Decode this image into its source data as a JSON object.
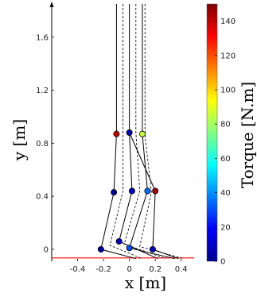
{
  "chart_data": {
    "type": "line",
    "title": "",
    "xlabel": "x [m]",
    "ylabel": "y [m]",
    "xlim": [
      -0.6,
      0.5
    ],
    "ylim": [
      -0.09,
      1.85
    ],
    "x_ticks": [
      -0.4,
      -0.2,
      0,
      0.2,
      0.4
    ],
    "x_tick_labels": [
      "-0.4",
      "-0.2",
      "0",
      "0.2",
      "0.4"
    ],
    "y_ticks": [
      0,
      0.4,
      0.8,
      1.2,
      1.6
    ],
    "y_tick_labels": [
      "0",
      "0.4",
      "0.8",
      "1.2",
      "1.6"
    ],
    "grid": false,
    "ground_y": -0.065,
    "ground_color": "#ff0000",
    "series": [
      {
        "style": "solid",
        "points": [
          {
            "x": -0.1,
            "y": 1.85
          },
          {
            "x": -0.1,
            "y": 0.87,
            "torque": 140
          },
          {
            "x": -0.12,
            "y": 0.43,
            "torque": 5
          },
          {
            "x": -0.22,
            "y": 0.0,
            "torque": 5
          },
          {
            "x": 0.05,
            "y": -0.07
          }
        ]
      },
      {
        "style": "solid",
        "points": [
          {
            "x": 0.0,
            "y": 1.85
          },
          {
            "x": 0.0,
            "y": 0.88,
            "torque": 8
          },
          {
            "x": 0.02,
            "y": 0.44,
            "torque": 10
          },
          {
            "x": -0.08,
            "y": 0.06,
            "torque": 10
          },
          {
            "x": 0.22,
            "y": -0.07
          }
        ]
      },
      {
        "style": "solid",
        "points": [
          {
            "x": 0.1,
            "y": 1.85
          },
          {
            "x": 0.1,
            "y": 0.87,
            "torque": 85
          },
          {
            "x": 0.14,
            "y": 0.44,
            "torque": 35
          },
          {
            "x": 0.0,
            "y": 0.01,
            "torque": 30
          },
          {
            "x": 0.35,
            "y": -0.07
          }
        ]
      },
      {
        "style": "solid",
        "points": [
          {
            "x": 0.0,
            "y": 0.88
          },
          {
            "x": 0.2,
            "y": 0.44,
            "torque": 145
          },
          {
            "x": 0.18,
            "y": 0.0,
            "torque": 10
          },
          {
            "x": 0.38,
            "y": -0.07
          }
        ]
      },
      {
        "style": "dashed",
        "points": [
          {
            "x": -0.05,
            "y": 1.85
          },
          {
            "x": -0.05,
            "y": 0.88
          },
          {
            "x": -0.05,
            "y": 0.44
          },
          {
            "x": -0.15,
            "y": 0.03
          },
          {
            "x": 0.1,
            "y": -0.07
          }
        ]
      },
      {
        "style": "dashed",
        "points": [
          {
            "x": 0.05,
            "y": 1.85
          },
          {
            "x": 0.05,
            "y": 0.88
          },
          {
            "x": 0.08,
            "y": 0.44
          },
          {
            "x": -0.04,
            "y": 0.04
          },
          {
            "x": 0.28,
            "y": -0.07
          }
        ]
      },
      {
        "style": "dashed",
        "points": [
          {
            "x": 0.12,
            "y": 1.85
          },
          {
            "x": 0.12,
            "y": 0.86
          },
          {
            "x": 0.17,
            "y": 0.43
          },
          {
            "x": 0.08,
            "y": 0.02
          },
          {
            "x": 0.42,
            "y": -0.07
          }
        ]
      }
    ],
    "colorbar": {
      "label": "Torque [N.m]",
      "min": 0,
      "max": 150,
      "colormap": "jet",
      "ticks": [
        0,
        20,
        40,
        60,
        80,
        100,
        120,
        140
      ],
      "tick_labels": [
        "0",
        "20",
        "40",
        "60",
        "80",
        "100",
        "120",
        "140"
      ]
    }
  }
}
